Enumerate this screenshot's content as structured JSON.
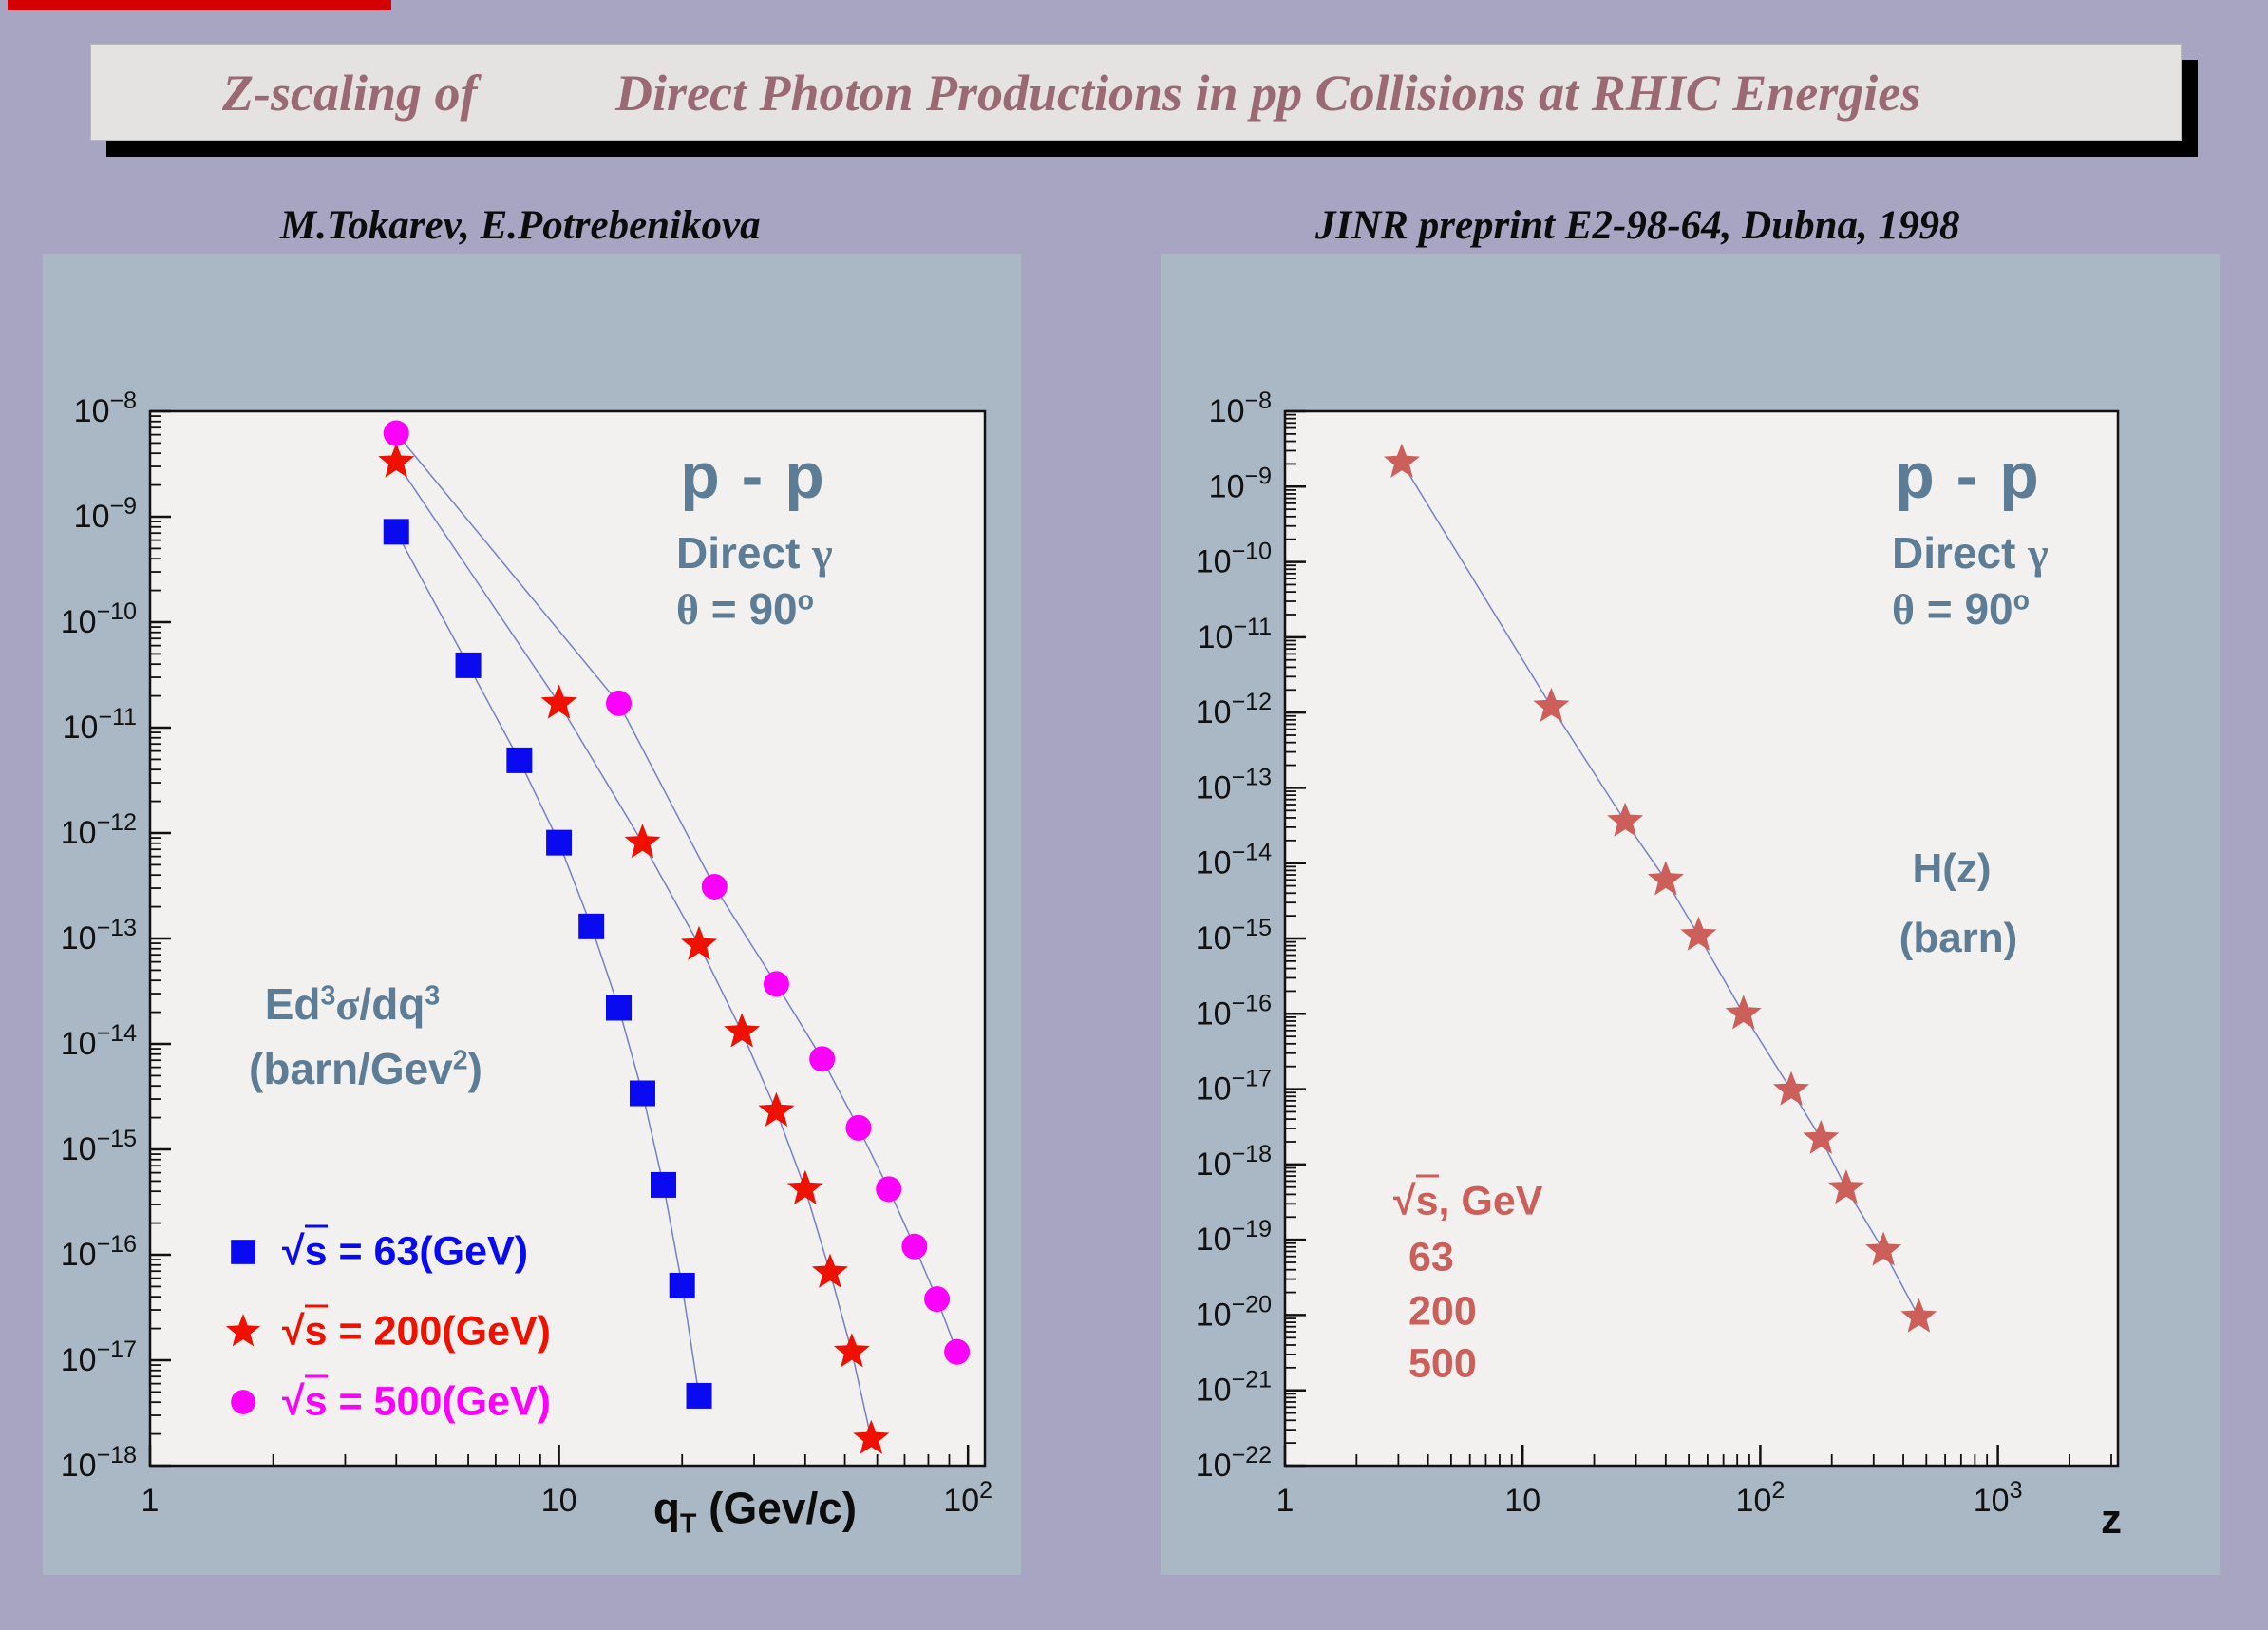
{
  "header": {
    "title_part1": "Z-scaling of",
    "title_part2": "Direct Photon Productions in pp Collisions at RHIC Energies",
    "authors": "M.Tokarev, E.Potrebenikova",
    "preprint": "JINR preprint E2-98-64, Dubna, 1998"
  },
  "colors": {
    "page_bg": "#a8a5c2",
    "panel_bg": "#aab7c4",
    "plot_bg": "#f2f1ef",
    "title_text": "#9b6973",
    "slate_text": "#5d7d96",
    "salmon": "#cd5f5a",
    "series_blue": "#0a0af0",
    "series_red": "#ee1100",
    "series_magenta": "#fb00fb",
    "connect_line": "#7580c6",
    "top_strip": "#d40000"
  },
  "left_chart": {
    "system": "p - p",
    "process": {
      "text": "Direct ",
      "gamma": "γ"
    },
    "angle": {
      "theta": "θ",
      "text": " = 90",
      "sup": "o"
    },
    "ylabel_line1": {
      "t1": "Ed",
      "sup1": "3",
      "sigma": "σ",
      "t2": "/dq",
      "sup2": "3"
    },
    "ylabel_line2": {
      "t1": "(barn/Gev",
      "sup": "2",
      "t2": ")"
    },
    "xlabel": {
      "main": "q",
      "sub": "T",
      "rest": " (Gev/c)"
    },
    "legend": [
      {
        "radical": "√",
        "s": "s",
        "rest": " = 63(GeV)",
        "marker": "square",
        "color": "#0a0af0"
      },
      {
        "radical": "√",
        "s": "s",
        "rest": " = 200(GeV)",
        "marker": "star",
        "color": "#ee1100"
      },
      {
        "radical": "√",
        "s": "s",
        "rest": " = 500(GeV)",
        "marker": "circle",
        "color": "#fb00fb"
      }
    ]
  },
  "right_chart": {
    "system": "p - p",
    "process": {
      "text": "Direct ",
      "gamma": "γ"
    },
    "angle": {
      "theta": "θ",
      "text": " = 90",
      "sup": "o"
    },
    "flabel1": "H(z)",
    "flabel2": "(barn)",
    "xlabel": "z",
    "energies": {
      "radical": "√",
      "s": "s",
      "rest": ", GeV",
      "items": [
        "63",
        "200",
        "500"
      ]
    }
  },
  "chart_data": [
    {
      "type": "scatter",
      "title": "p - p  Direct photon  theta = 90 deg",
      "xlabel": "qT (Gev/c)",
      "ylabel": "Ed3sigma/dq3 (barn/Gev2)",
      "x_log": true,
      "y_log": true,
      "xlim": [
        1,
        110
      ],
      "ylim": [
        1e-18,
        1e-08
      ],
      "x_labeled_decades": [
        0,
        1,
        2
      ],
      "grid": false,
      "legend_position": "lower-left",
      "line_color": "#7580c6",
      "series": [
        {
          "name": "sqrt(s) = 63 GeV",
          "marker": "square",
          "color": "#0a0af0",
          "x": [
            4,
            6,
            8,
            10,
            12,
            14,
            16,
            18,
            20,
            22
          ],
          "y": [
            7.2e-10,
            3.9e-11,
            4.9e-12,
            8.1e-13,
            1.3e-13,
            2.2e-14,
            3.4e-15,
            4.6e-16,
            5.1e-17,
            4.6e-18
          ]
        },
        {
          "name": "sqrt(s) = 200 GeV",
          "marker": "star",
          "color": "#ee1100",
          "x": [
            4,
            10,
            16,
            22,
            28,
            34,
            40,
            46,
            52,
            58
          ],
          "y": [
            3.3e-09,
            1.7e-11,
            8.1e-13,
            8.7e-14,
            1.3e-14,
            2.3e-15,
            4.2e-16,
            6.8e-17,
            1.2e-17,
            1.8e-18
          ]
        },
        {
          "name": "sqrt(s) = 500 GeV",
          "marker": "circle",
          "color": "#fb00fb",
          "x": [
            4,
            14,
            24,
            34,
            44,
            54,
            64,
            74,
            84,
            94
          ],
          "y": [
            6.2e-09,
            1.7e-11,
            3.1e-13,
            3.7e-14,
            7.2e-15,
            1.6e-15,
            4.2e-16,
            1.2e-16,
            3.8e-17,
            1.2e-17
          ]
        }
      ]
    },
    {
      "type": "scatter",
      "title": "p - p  Direct photon  theta = 90 deg",
      "xlabel": "z",
      "ylabel": "H(z) (barn)",
      "x_log": true,
      "y_log": true,
      "xlim": [
        1,
        3200
      ],
      "ylim": [
        1e-22,
        1e-08
      ],
      "x_labeled_decades": [
        0,
        1,
        2,
        3
      ],
      "grid": false,
      "legend_position": "none",
      "line_color": "#7580c6",
      "series": [
        {
          "name": "sqrt(s) = 63, 200, 500 GeV combined",
          "marker": "star",
          "color": "#cd5f5a",
          "x": [
            3.1,
            13.2,
            27,
            40,
            55,
            85,
            135,
            180,
            230,
            330,
            465
          ],
          "y": [
            2.1e-09,
            1.2e-12,
            3.6e-14,
            6e-15,
            1.1e-15,
            1e-16,
            9.7e-18,
            2.2e-18,
            4.8e-19,
            7.2e-20,
            9.4e-21
          ]
        }
      ]
    }
  ]
}
